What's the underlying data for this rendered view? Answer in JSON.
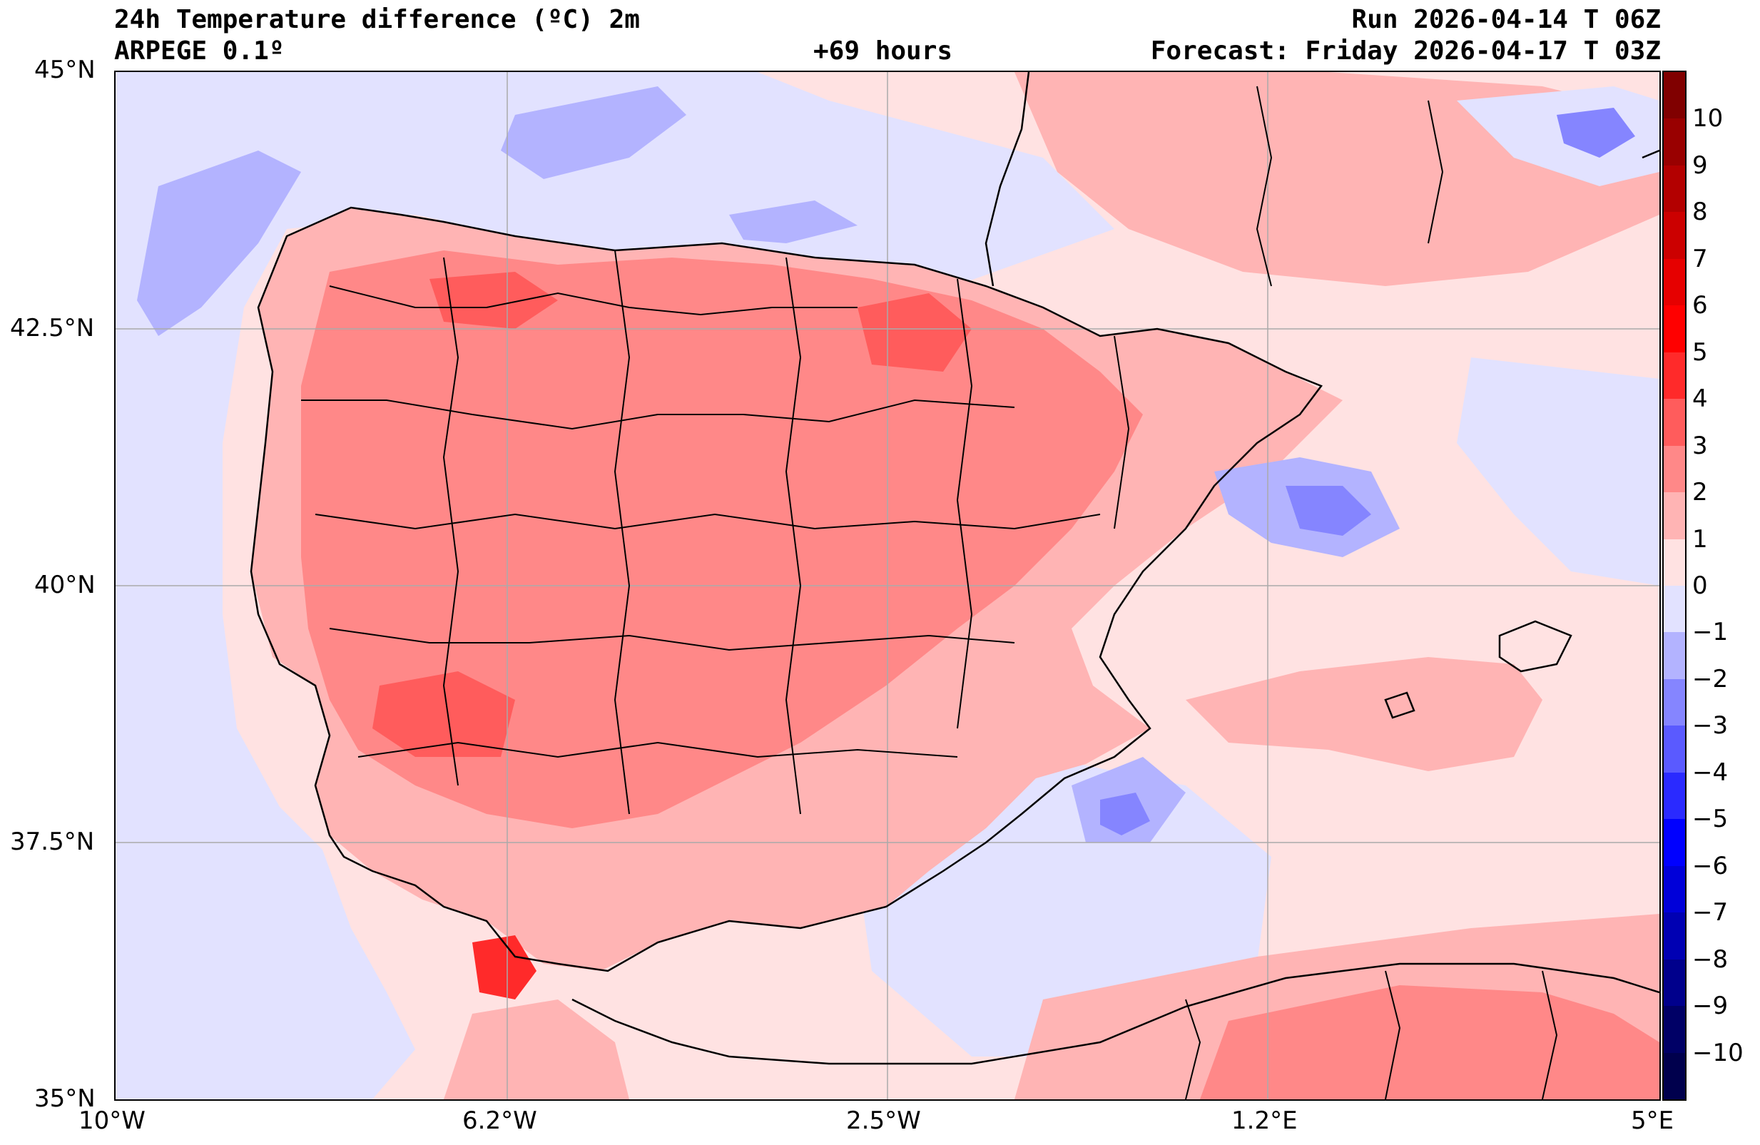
{
  "header": {
    "title": "24h Temperature difference (ºC) 2m",
    "model": "ARPEGE 0.1º",
    "lead_time": "+69 hours",
    "run": "Run 2026-04-14 T 06Z",
    "forecast": "Forecast: Friday 2026-04-17 T 03Z"
  },
  "map": {
    "lon_range": [
      -10,
      5
    ],
    "lat_range": [
      35,
      45
    ],
    "x_ticks": [
      {
        "value": -10,
        "label": "10°W"
      },
      {
        "value": -6.2,
        "label": "6.2°W"
      },
      {
        "value": -2.5,
        "label": "2.5°W"
      },
      {
        "value": 1.2,
        "label": "1.2°E"
      },
      {
        "value": 5,
        "label": "5°E"
      }
    ],
    "y_ticks": [
      {
        "value": 45,
        "label": "45°N"
      },
      {
        "value": 42.5,
        "label": "42.5°N"
      },
      {
        "value": 40,
        "label": "40°N"
      },
      {
        "value": 37.5,
        "label": "37.5°N"
      },
      {
        "value": 35,
        "label": "35°N"
      }
    ],
    "grid": true,
    "colors": {
      "warm_1": "#ffe2e2",
      "warm_2": "#ffb4b4",
      "warm_3": "#ff8888",
      "warm_4": "#ff5c5c",
      "warm_5": "#ff2a2a",
      "cool_1": "#e2e2ff",
      "cool_2": "#b3b3ff",
      "cool_3": "#8585ff",
      "cool_4": "#5a5aff",
      "coast": "#000000",
      "grid": "#aaaaaa"
    }
  },
  "colorbar": {
    "min": -11,
    "max": 11,
    "labels": [
      "10",
      "9",
      "8",
      "7",
      "6",
      "5",
      "4",
      "3",
      "2",
      "1",
      "0",
      "−1",
      "−2",
      "−3",
      "−4",
      "−5",
      "−6",
      "−7",
      "−8",
      "−9",
      "−10"
    ],
    "label_values": [
      10,
      9,
      8,
      7,
      6,
      5,
      4,
      3,
      2,
      1,
      0,
      -1,
      -2,
      -3,
      -4,
      -5,
      -6,
      -7,
      -8,
      -9,
      -10
    ],
    "colors_top_to_bottom": [
      "#800000",
      "#990000",
      "#b30000",
      "#cc0000",
      "#e60000",
      "#ff0000",
      "#ff2a2a",
      "#ff5c5c",
      "#ff8888",
      "#ffb4b4",
      "#ffe2e2",
      "#e2e2ff",
      "#b3b3ff",
      "#8585ff",
      "#5a5aff",
      "#2a2aff",
      "#0000ff",
      "#0000d9",
      "#0000b3",
      "#00008c",
      "#000066",
      "#00004d"
    ]
  }
}
